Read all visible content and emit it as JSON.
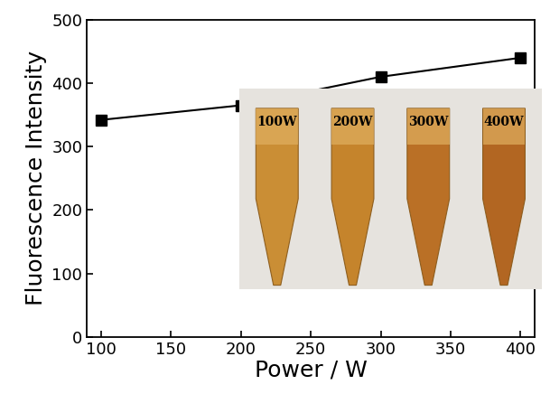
{
  "chart_data": {
    "type": "line",
    "x": [
      100,
      200,
      300,
      400
    ],
    "values": [
      342,
      365,
      410,
      440
    ],
    "xlabel": "Power / W",
    "ylabel": "Fluorescence Intensity",
    "xlim": [
      90,
      410
    ],
    "ylim": [
      0,
      500
    ],
    "xticks": [
      100,
      150,
      200,
      250,
      300,
      350,
      400
    ],
    "yticks": [
      0,
      100,
      200,
      300,
      400,
      500
    ],
    "color": "#000000",
    "marker": "square",
    "line_style": "solid",
    "annotations": [
      "100W",
      "200W",
      "300W",
      "400W"
    ]
  }
}
